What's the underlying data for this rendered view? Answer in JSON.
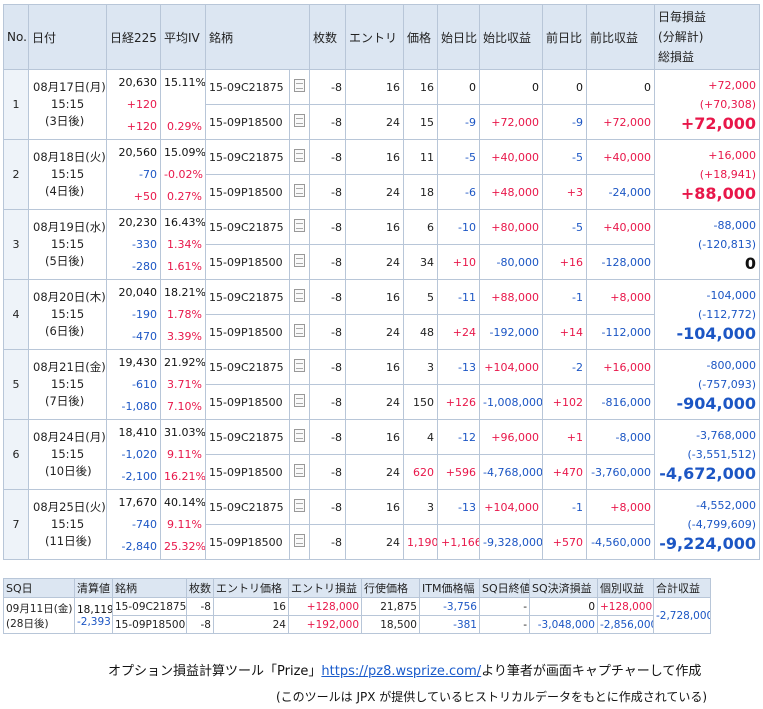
{
  "headers": {
    "no": "No.",
    "date": "日付",
    "nikkei": "日経225",
    "iv": "平均IV",
    "issue": "銘柄",
    "qty": "枚数",
    "entry": "エントリ",
    "price": "価格",
    "diff_start": "始日比",
    "pl_start": "始比収益",
    "diff_prev": "前日比",
    "pl_prev": "前比収益",
    "total_1": "日毎損益",
    "total_2": "(分解計)",
    "total_3": "総損益"
  },
  "rows": [
    {
      "no": "1",
      "date": "08月17日(月)",
      "time": "15:15",
      "days": "(3日後)",
      "nikkei": "20,630",
      "nk_prev": "+120",
      "nk_start": "+120",
      "iv": "15.11%",
      "iv_prev": "",
      "iv_start": "0.29%",
      "legs": [
        {
          "issue": "15-09C21875",
          "qty": "-8",
          "entry": "16",
          "price": "16",
          "d_start": "0",
          "pl_start": "0",
          "d_prev": "0",
          "pl_prev": "0"
        },
        {
          "issue": "15-09P18500",
          "qty": "-8",
          "entry": "24",
          "price": "15",
          "d_start": "-9",
          "pl_start": "+72,000",
          "d_prev": "-9",
          "pl_prev": "+72,000"
        }
      ],
      "t_daily": "+72,000",
      "t_decomp": "(+70,308)",
      "t_total": "+72,000"
    },
    {
      "no": "2",
      "date": "08月18日(火)",
      "time": "15:15",
      "days": "(4日後)",
      "nikkei": "20,560",
      "nk_prev": "-70",
      "nk_start": "+50",
      "iv": "15.09%",
      "iv_prev": "-0.02%",
      "iv_start": "0.27%",
      "legs": [
        {
          "issue": "15-09C21875",
          "qty": "-8",
          "entry": "16",
          "price": "11",
          "d_start": "-5",
          "pl_start": "+40,000",
          "d_prev": "-5",
          "pl_prev": "+40,000"
        },
        {
          "issue": "15-09P18500",
          "qty": "-8",
          "entry": "24",
          "price": "18",
          "d_start": "-6",
          "pl_start": "+48,000",
          "d_prev": "+3",
          "pl_prev": "-24,000"
        }
      ],
      "t_daily": "+16,000",
      "t_decomp": "(+18,941)",
      "t_total": "+88,000"
    },
    {
      "no": "3",
      "date": "08月19日(水)",
      "time": "15:15",
      "days": "(5日後)",
      "nikkei": "20,230",
      "nk_prev": "-330",
      "nk_start": "-280",
      "iv": "16.43%",
      "iv_prev": "1.34%",
      "iv_start": "1.61%",
      "legs": [
        {
          "issue": "15-09C21875",
          "qty": "-8",
          "entry": "16",
          "price": "6",
          "d_start": "-10",
          "pl_start": "+80,000",
          "d_prev": "-5",
          "pl_prev": "+40,000"
        },
        {
          "issue": "15-09P18500",
          "qty": "-8",
          "entry": "24",
          "price": "34",
          "d_start": "+10",
          "pl_start": "-80,000",
          "d_prev": "+16",
          "pl_prev": "-128,000"
        }
      ],
      "t_daily": "-88,000",
      "t_decomp": "(-120,813)",
      "t_total": "0"
    },
    {
      "no": "4",
      "date": "08月20日(木)",
      "time": "15:15",
      "days": "(6日後)",
      "nikkei": "20,040",
      "nk_prev": "-190",
      "nk_start": "-470",
      "iv": "18.21%",
      "iv_prev": "1.78%",
      "iv_start": "3.39%",
      "legs": [
        {
          "issue": "15-09C21875",
          "qty": "-8",
          "entry": "16",
          "price": "5",
          "d_start": "-11",
          "pl_start": "+88,000",
          "d_prev": "-1",
          "pl_prev": "+8,000"
        },
        {
          "issue": "15-09P18500",
          "qty": "-8",
          "entry": "24",
          "price": "48",
          "d_start": "+24",
          "pl_start": "-192,000",
          "d_prev": "+14",
          "pl_prev": "-112,000"
        }
      ],
      "t_daily": "-104,000",
      "t_decomp": "(-112,772)",
      "t_total": "-104,000"
    },
    {
      "no": "5",
      "date": "08月21日(金)",
      "time": "15:15",
      "days": "(7日後)",
      "nikkei": "19,430",
      "nk_prev": "-610",
      "nk_start": "-1,080",
      "iv": "21.92%",
      "iv_prev": "3.71%",
      "iv_start": "7.10%",
      "legs": [
        {
          "issue": "15-09C21875",
          "qty": "-8",
          "entry": "16",
          "price": "3",
          "d_start": "-13",
          "pl_start": "+104,000",
          "d_prev": "-2",
          "pl_prev": "+16,000"
        },
        {
          "issue": "15-09P18500",
          "qty": "-8",
          "entry": "24",
          "price": "150",
          "d_start": "+126",
          "pl_start": "-1,008,000",
          "d_prev": "+102",
          "pl_prev": "-816,000"
        }
      ],
      "t_daily": "-800,000",
      "t_decomp": "(-757,093)",
      "t_total": "-904,000"
    },
    {
      "no": "6",
      "date": "08月24日(月)",
      "time": "15:15",
      "days": "(10日後)",
      "nikkei": "18,410",
      "nk_prev": "-1,020",
      "nk_start": "-2,100",
      "iv": "31.03%",
      "iv_prev": "9.11%",
      "iv_start": "16.21%",
      "legs": [
        {
          "issue": "15-09C21875",
          "qty": "-8",
          "entry": "16",
          "price": "4",
          "d_start": "-12",
          "pl_start": "+96,000",
          "d_prev": "+1",
          "pl_prev": "-8,000"
        },
        {
          "issue": "15-09P18500",
          "qty": "-8",
          "entry": "24",
          "price": "620",
          "d_start": "+596",
          "pl_start": "-4,768,000",
          "d_prev": "+470",
          "pl_prev": "-3,760,000"
        }
      ],
      "t_daily": "-3,768,000",
      "t_decomp": "(-3,551,512)",
      "t_total": "-4,672,000"
    },
    {
      "no": "7",
      "date": "08月25日(火)",
      "time": "15:15",
      "days": "(11日後)",
      "nikkei": "17,670",
      "nk_prev": "-740",
      "nk_start": "-2,840",
      "iv": "40.14%",
      "iv_prev": "9.11%",
      "iv_start": "25.32%",
      "legs": [
        {
          "issue": "15-09C21875",
          "qty": "-8",
          "entry": "16",
          "price": "3",
          "d_start": "-13",
          "pl_start": "+104,000",
          "d_prev": "-1",
          "pl_prev": "+8,000"
        },
        {
          "issue": "15-09P18500",
          "qty": "-8",
          "entry": "24",
          "price": "1,190",
          "d_start": "+1,166",
          "pl_start": "-9,328,000",
          "d_prev": "+570",
          "pl_prev": "-4,560,000"
        }
      ],
      "t_daily": "-4,552,000",
      "t_decomp": "(-4,799,609)",
      "t_total": "-9,224,000"
    }
  ],
  "sq": {
    "headers": [
      "SQ日",
      "清算値",
      "銘柄",
      "枚数",
      "エントリ価格",
      "エントリ損益",
      "行使価格",
      "ITM価格幅",
      "SQ日終値",
      "SQ決済損益",
      "個別収益",
      "合計収益"
    ],
    "date": "09月11日(金)",
    "days": "(28日後)",
    "settle": "18,119",
    "settle_diff": "-2,393",
    "legs": [
      {
        "issue": "15-09C21875",
        "qty": "-8",
        "entry_price": "16",
        "entry_pl": "+128,000",
        "strike": "21,875",
        "itm": "-3,756",
        "close": "-",
        "sq_pl": "0",
        "indiv": "+128,000"
      },
      {
        "issue": "15-09P18500",
        "qty": "-8",
        "entry_price": "24",
        "entry_pl": "+192,000",
        "strike": "18,500",
        "itm": "-381",
        "close": "-",
        "sq_pl": "-3,048,000",
        "indiv": "-2,856,000"
      }
    ],
    "total": "-2,728,000"
  },
  "caption": {
    "line1_a": "オプション損益計算ツール「Prize」",
    "url": "https://pz8.wsprize.com/",
    "line1_b": "より筆者が画面キャプチャーして作成",
    "line2": "(このツールは JPX が提供しているヒストリカルデータをもとに作成されている)"
  },
  "colors": {
    "positive": "#e8174a",
    "negative": "#1c56c4",
    "header_bg": "#dce6f2",
    "grid": "#b8c6d8"
  }
}
